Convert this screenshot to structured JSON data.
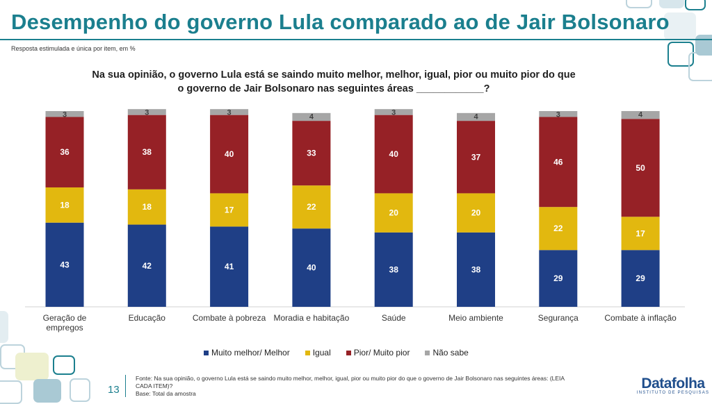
{
  "header": {
    "title": "Desempenho do governo Lula comparado ao de Jair Bolsonaro",
    "subtitle": "Resposta estimulada e única por item, em %",
    "question_line1": "Na sua opinião, o governo Lula está se saindo muito melhor, melhor, igual, pior ou muito pior do que",
    "question_line2": "o governo de Jair Bolsonaro nas seguintes áreas ____________?"
  },
  "chart_data": {
    "type": "stacked-bar",
    "categories": [
      "Geração de empregos",
      "Educação",
      "Combate à pobreza",
      "Moradia e habitação",
      "Saúde",
      "Meio ambiente",
      "Segurança",
      "Combate à inflação"
    ],
    "category_lines": [
      [
        "Geração de",
        "empregos"
      ],
      [
        "Educação"
      ],
      [
        "Combate à pobreza"
      ],
      [
        "Moradia e habitação"
      ],
      [
        "Saúde"
      ],
      [
        "Meio ambiente"
      ],
      [
        "Segurança"
      ],
      [
        "Combate à inflação"
      ]
    ],
    "series": [
      {
        "name": "Muito melhor/ Melhor",
        "color": "#1f3f86",
        "values": [
          43,
          42,
          41,
          40,
          38,
          38,
          29,
          29
        ]
      },
      {
        "name": "Igual",
        "color": "#e2b80f",
        "values": [
          18,
          18,
          17,
          22,
          20,
          20,
          22,
          17
        ]
      },
      {
        "name": "Pior/ Muito pior",
        "color": "#962126",
        "values": [
          36,
          38,
          40,
          33,
          40,
          37,
          46,
          50
        ]
      },
      {
        "name": "Não sabe",
        "color": "#a6a6a6",
        "values": [
          3,
          3,
          3,
          4,
          3,
          4,
          3,
          4
        ]
      }
    ],
    "ylim": [
      0,
      100
    ]
  },
  "legend": {
    "items": [
      "Muito melhor/ Melhor",
      "Igual",
      "Pior/ Muito pior",
      "Não sabe"
    ]
  },
  "footer": {
    "source_line1": "Fonte: Na sua opinião, o governo Lula está se saindo muito melhor, melhor, igual, pior ou muito pior do que o governo de Jair Bolsonaro nas seguintes áreas: (LEIA",
    "source_line2": "CADA ITEM)?",
    "base": "Base: Total da amostra",
    "page_number": "13",
    "brand": "Datafolha",
    "brand_sub": "INSTITUTO DE PESQUISAS"
  }
}
